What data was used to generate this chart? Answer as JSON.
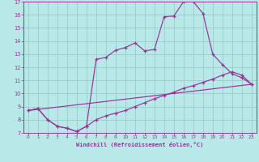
{
  "xlabel": "Windchill (Refroidissement éolien,°C)",
  "background_color": "#b8e8e8",
  "line_color": "#993399",
  "grid_color": "#99cccc",
  "xlim": [
    -0.5,
    23.5
  ],
  "ylim": [
    7,
    17
  ],
  "xticks": [
    0,
    1,
    2,
    3,
    4,
    5,
    6,
    7,
    8,
    9,
    10,
    11,
    12,
    13,
    14,
    15,
    16,
    17,
    18,
    19,
    20,
    21,
    22,
    23
  ],
  "yticks": [
    7,
    8,
    9,
    10,
    11,
    12,
    13,
    14,
    15,
    16,
    17
  ],
  "line1_x": [
    0,
    1,
    2,
    3,
    4,
    5,
    6,
    7,
    8,
    9,
    10,
    11,
    12,
    13,
    14,
    15,
    16,
    17,
    18,
    19,
    20,
    21,
    22,
    23
  ],
  "line1_y": [
    8.7,
    8.85,
    8.0,
    7.5,
    7.35,
    7.1,
    7.5,
    12.6,
    12.75,
    13.3,
    13.5,
    13.85,
    13.25,
    13.35,
    15.85,
    15.9,
    17.0,
    17.0,
    16.1,
    13.0,
    12.2,
    11.5,
    11.2,
    10.7
  ],
  "line2_x": [
    0,
    1,
    2,
    3,
    4,
    5,
    6,
    7,
    8,
    9,
    10,
    11,
    12,
    13,
    14,
    15,
    16,
    17,
    18,
    19,
    20,
    21,
    22,
    23
  ],
  "line2_y": [
    8.7,
    8.85,
    8.0,
    7.5,
    7.35,
    7.1,
    7.5,
    8.0,
    8.3,
    8.5,
    8.7,
    9.0,
    9.3,
    9.6,
    9.85,
    10.1,
    10.4,
    10.6,
    10.85,
    11.1,
    11.4,
    11.65,
    11.4,
    10.7
  ],
  "line3_x": [
    0,
    23
  ],
  "line3_y": [
    8.7,
    10.7
  ]
}
